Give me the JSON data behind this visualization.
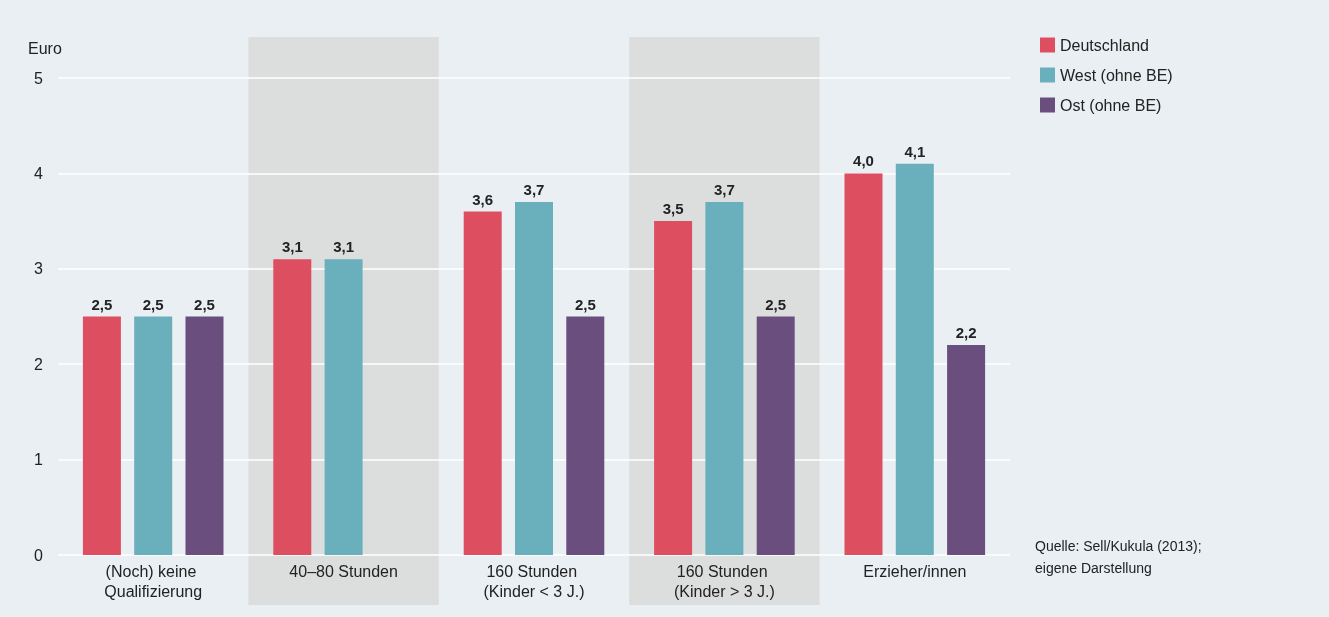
{
  "chart_data": {
    "type": "bar",
    "ylabel": "Euro",
    "categories": [
      "(Noch) keine Qualifizierung",
      "40–80 Stunden",
      "160 Stunden (Kinder < 3 J.)",
      "160 Stunden (Kinder > 3 J.)",
      "Erzieher/innen"
    ],
    "series": [
      {
        "name": "Deutschland",
        "color": "#dc4e60",
        "values": [
          2.5,
          3.1,
          3.6,
          3.5,
          4.0
        ],
        "value_labels": [
          "2,5",
          "3,1",
          "3,6",
          "3,5",
          "4,0"
        ]
      },
      {
        "name": "West (ohne BE)",
        "color": "#6aafbc",
        "values": [
          2.5,
          3.1,
          3.7,
          3.7,
          4.1
        ],
        "value_labels": [
          "2,5",
          "3,1",
          "3,7",
          "3,7",
          "4,1"
        ]
      },
      {
        "name": "Ost (ohne BE)",
        "color": "#6a4e7d",
        "values": [
          2.5,
          null,
          2.5,
          2.5,
          2.2
        ],
        "value_labels": [
          "2,5",
          null,
          "2,5",
          "2,5",
          "2,2"
        ]
      }
    ],
    "ylim": [
      0,
      5
    ],
    "yticks": [
      0,
      1,
      2,
      3,
      4,
      5
    ],
    "grid": "y",
    "legend": "top right",
    "bands": [
      {
        "axis": "x",
        "from": "40–80 Stunden",
        "to": "40–80 Stunden",
        "color": "#dcdedd"
      },
      {
        "axis": "x",
        "from": "160 Stunden (Kinder > 3 J.)",
        "to": "160 Stunden (Kinder > 3 J.)",
        "color": "#dcdedd"
      }
    ],
    "annotations": [
      "Quelle: Sell/Kukula (2013); eigene Darstellung"
    ]
  }
}
